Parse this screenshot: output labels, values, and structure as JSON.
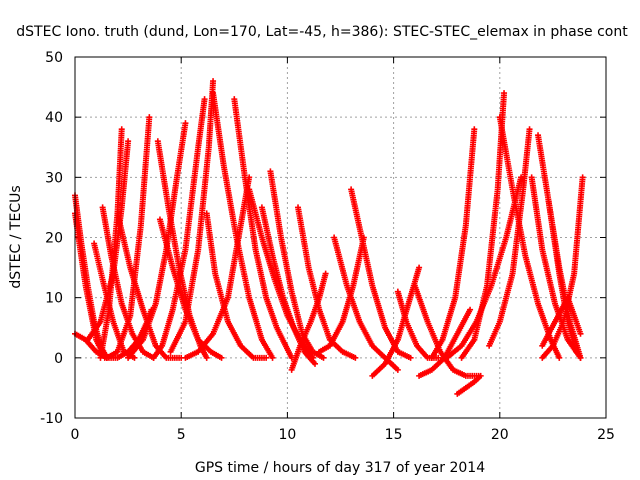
{
  "chart_data": {
    "type": "scatter",
    "title": "dSTEC Iono. truth (dund, Lon=170, Lat=-45, h=386): STEC-STEC_elemax in phase cont",
    "xlabel": "GPS time / hours of day 317 of year 2014",
    "ylabel": "dSTEC  / TECUs",
    "xlim": [
      0,
      25
    ],
    "ylim": [
      -10,
      50
    ],
    "xticks": [
      0,
      5,
      10,
      15,
      20,
      25
    ],
    "yticks": [
      -10,
      0,
      10,
      20,
      30,
      40,
      50
    ],
    "grid": true,
    "marker": "+",
    "color": "#ff0000",
    "series": [
      {
        "x": [
          0.0,
          0.3,
          0.6,
          0.9,
          1.2,
          1.5
        ],
        "y": [
          27,
          19,
          12,
          6,
          2,
          0
        ]
      },
      {
        "x": [
          0.0,
          0.5,
          1.0,
          1.5,
          2.0,
          2.5,
          3.0,
          3.4,
          3.6
        ],
        "y": [
          4,
          3,
          1,
          0,
          0,
          1,
          3,
          6,
          8
        ]
      },
      {
        "x": [
          0.0,
          0.5,
          1.0,
          1.4
        ],
        "y": [
          24,
          12,
          3,
          0
        ]
      },
      {
        "x": [
          0.6,
          1.2,
          1.8,
          2.2,
          2.5
        ],
        "y": [
          3,
          6,
          14,
          25,
          36
        ]
      },
      {
        "x": [
          0.9,
          1.3,
          1.8,
          2.3,
          2.8
        ],
        "y": [
          19,
          13,
          6,
          1,
          0
        ]
      },
      {
        "x": [
          1.2,
          1.6,
          2.0,
          2.2
        ],
        "y": [
          0,
          8,
          24,
          38
        ]
      },
      {
        "x": [
          1.5,
          2.0,
          2.6,
          3.1,
          3.5
        ],
        "y": [
          0,
          1,
          7,
          22,
          40
        ]
      },
      {
        "x": [
          1.3,
          1.7,
          2.2,
          2.7,
          3.2,
          3.7
        ],
        "y": [
          25,
          17,
          9,
          4,
          1,
          0
        ]
      },
      {
        "x": [
          2.0,
          2.6,
          3.2,
          3.8,
          4.3,
          5.0
        ],
        "y": [
          24,
          15,
          8,
          2,
          0,
          0
        ]
      },
      {
        "x": [
          2.5,
          3.2,
          3.8,
          4.3,
          4.8,
          5.2
        ],
        "y": [
          0,
          3,
          9,
          18,
          30,
          39
        ]
      },
      {
        "x": [
          3.9,
          4.4,
          4.9,
          5.4,
          5.9,
          6.2
        ],
        "y": [
          36,
          25,
          15,
          7,
          2,
          0
        ]
      },
      {
        "x": [
          4.0,
          4.6,
          5.2,
          5.8,
          6.4,
          6.9
        ],
        "y": [
          23,
          15,
          8,
          3,
          1,
          0
        ]
      },
      {
        "x": [
          3.7,
          4.1,
          4.6,
          5.2,
          5.8,
          6.1
        ],
        "y": [
          0,
          2,
          8,
          18,
          35,
          43
        ]
      },
      {
        "x": [
          4.5,
          5.2,
          5.8,
          6.3,
          6.5
        ],
        "y": [
          1,
          6,
          18,
          35,
          46
        ]
      },
      {
        "x": [
          6.5,
          7.0,
          7.6,
          8.2,
          8.8,
          9.3
        ],
        "y": [
          44,
          32,
          20,
          10,
          3,
          0
        ]
      },
      {
        "x": [
          5.2,
          5.8,
          6.5,
          7.2,
          7.8,
          8.2
        ],
        "y": [
          0,
          1,
          4,
          10,
          22,
          30
        ]
      },
      {
        "x": [
          6.2,
          6.6,
          7.2,
          7.8,
          8.4,
          9.0
        ],
        "y": [
          24,
          14,
          6,
          2,
          0,
          0
        ]
      },
      {
        "x": [
          7.5,
          8.0,
          8.5,
          9.0,
          9.5,
          10.2
        ],
        "y": [
          43,
          30,
          18,
          10,
          5,
          0
        ]
      },
      {
        "x": [
          8.2,
          8.8,
          9.4,
          10.0,
          10.6,
          11.2
        ],
        "y": [
          28,
          20,
          13,
          7,
          3,
          0
        ]
      },
      {
        "x": [
          8.8,
          9.3,
          9.8,
          10.3,
          10.8,
          11.3
        ],
        "y": [
          25,
          17,
          10,
          5,
          1,
          -1
        ]
      },
      {
        "x": [
          9.2,
          9.7,
          10.2,
          10.7,
          11.2,
          11.7
        ],
        "y": [
          31,
          20,
          11,
          4,
          1,
          0
        ]
      },
      {
        "x": [
          10.2,
          10.6,
          11.1,
          11.5,
          11.8
        ],
        "y": [
          -2,
          2,
          6,
          10,
          14
        ]
      },
      {
        "x": [
          10.5,
          11.0,
          11.5,
          12.0,
          12.6,
          13.2
        ],
        "y": [
          25,
          15,
          8,
          3,
          1,
          0
        ]
      },
      {
        "x": [
          11.5,
          12.0,
          12.6,
          13.1,
          13.6
        ],
        "y": [
          1,
          2,
          6,
          12,
          20
        ]
      },
      {
        "x": [
          12.2,
          12.8,
          13.4,
          14.0,
          14.6,
          15.2
        ],
        "y": [
          20,
          12,
          6,
          2,
          0,
          -2
        ]
      },
      {
        "x": [
          13.0,
          13.5,
          14.0,
          14.6,
          15.2,
          15.8
        ],
        "y": [
          28,
          20,
          12,
          5,
          1,
          0
        ]
      },
      {
        "x": [
          14.0,
          14.6,
          15.2,
          15.7,
          16.2
        ],
        "y": [
          -3,
          -1,
          3,
          9,
          15
        ]
      },
      {
        "x": [
          15.2,
          15.6,
          16.1,
          16.6,
          17.1
        ],
        "y": [
          11,
          6,
          2,
          0,
          0
        ]
      },
      {
        "x": [
          16.0,
          16.6,
          17.2,
          17.8,
          18.4,
          19.0
        ],
        "y": [
          12,
          6,
          1,
          -2,
          -3,
          -3
        ]
      },
      {
        "x": [
          16.2,
          16.8,
          17.4,
          18.0,
          18.6
        ],
        "y": [
          -3,
          -2,
          0,
          4,
          8
        ]
      },
      {
        "x": [
          16.8,
          17.3,
          17.9,
          18.4,
          18.8
        ],
        "y": [
          0,
          3,
          10,
          22,
          38
        ]
      },
      {
        "x": [
          18.0,
          18.4,
          18.8,
          19.1
        ],
        "y": [
          -6,
          -5,
          -4,
          -3
        ]
      },
      {
        "x": [
          18.2,
          18.8,
          19.4,
          19.9,
          20.2
        ],
        "y": [
          0,
          3,
          12,
          28,
          44
        ]
      },
      {
        "x": [
          17.5,
          18.2,
          18.9,
          19.6,
          20.3,
          21.0
        ],
        "y": [
          0,
          2,
          6,
          12,
          20,
          30
        ]
      },
      {
        "x": [
          19.5,
          20.0,
          20.6,
          21.1,
          21.4
        ],
        "y": [
          2,
          6,
          14,
          28,
          38
        ]
      },
      {
        "x": [
          20.0,
          20.6,
          21.2,
          21.8,
          22.4,
          22.8
        ],
        "y": [
          40,
          28,
          17,
          9,
          3,
          0
        ]
      },
      {
        "x": [
          21.8,
          22.3,
          22.8,
          23.3,
          23.8
        ],
        "y": [
          37,
          26,
          15,
          6,
          0
        ]
      },
      {
        "x": [
          21.5,
          22.0,
          22.6,
          23.2,
          23.8
        ],
        "y": [
          30,
          18,
          9,
          3,
          0
        ]
      },
      {
        "x": [
          22.0,
          22.5,
          23.0,
          23.5,
          23.9
        ],
        "y": [
          0,
          2,
          6,
          14,
          30
        ]
      },
      {
        "x": [
          22.3,
          22.8,
          23.2,
          23.6
        ],
        "y": [
          26,
          14,
          6,
          1
        ]
      },
      {
        "x": [
          22.0,
          22.6,
          23.2,
          23.8
        ],
        "y": [
          2,
          6,
          10,
          4
        ]
      }
    ]
  }
}
